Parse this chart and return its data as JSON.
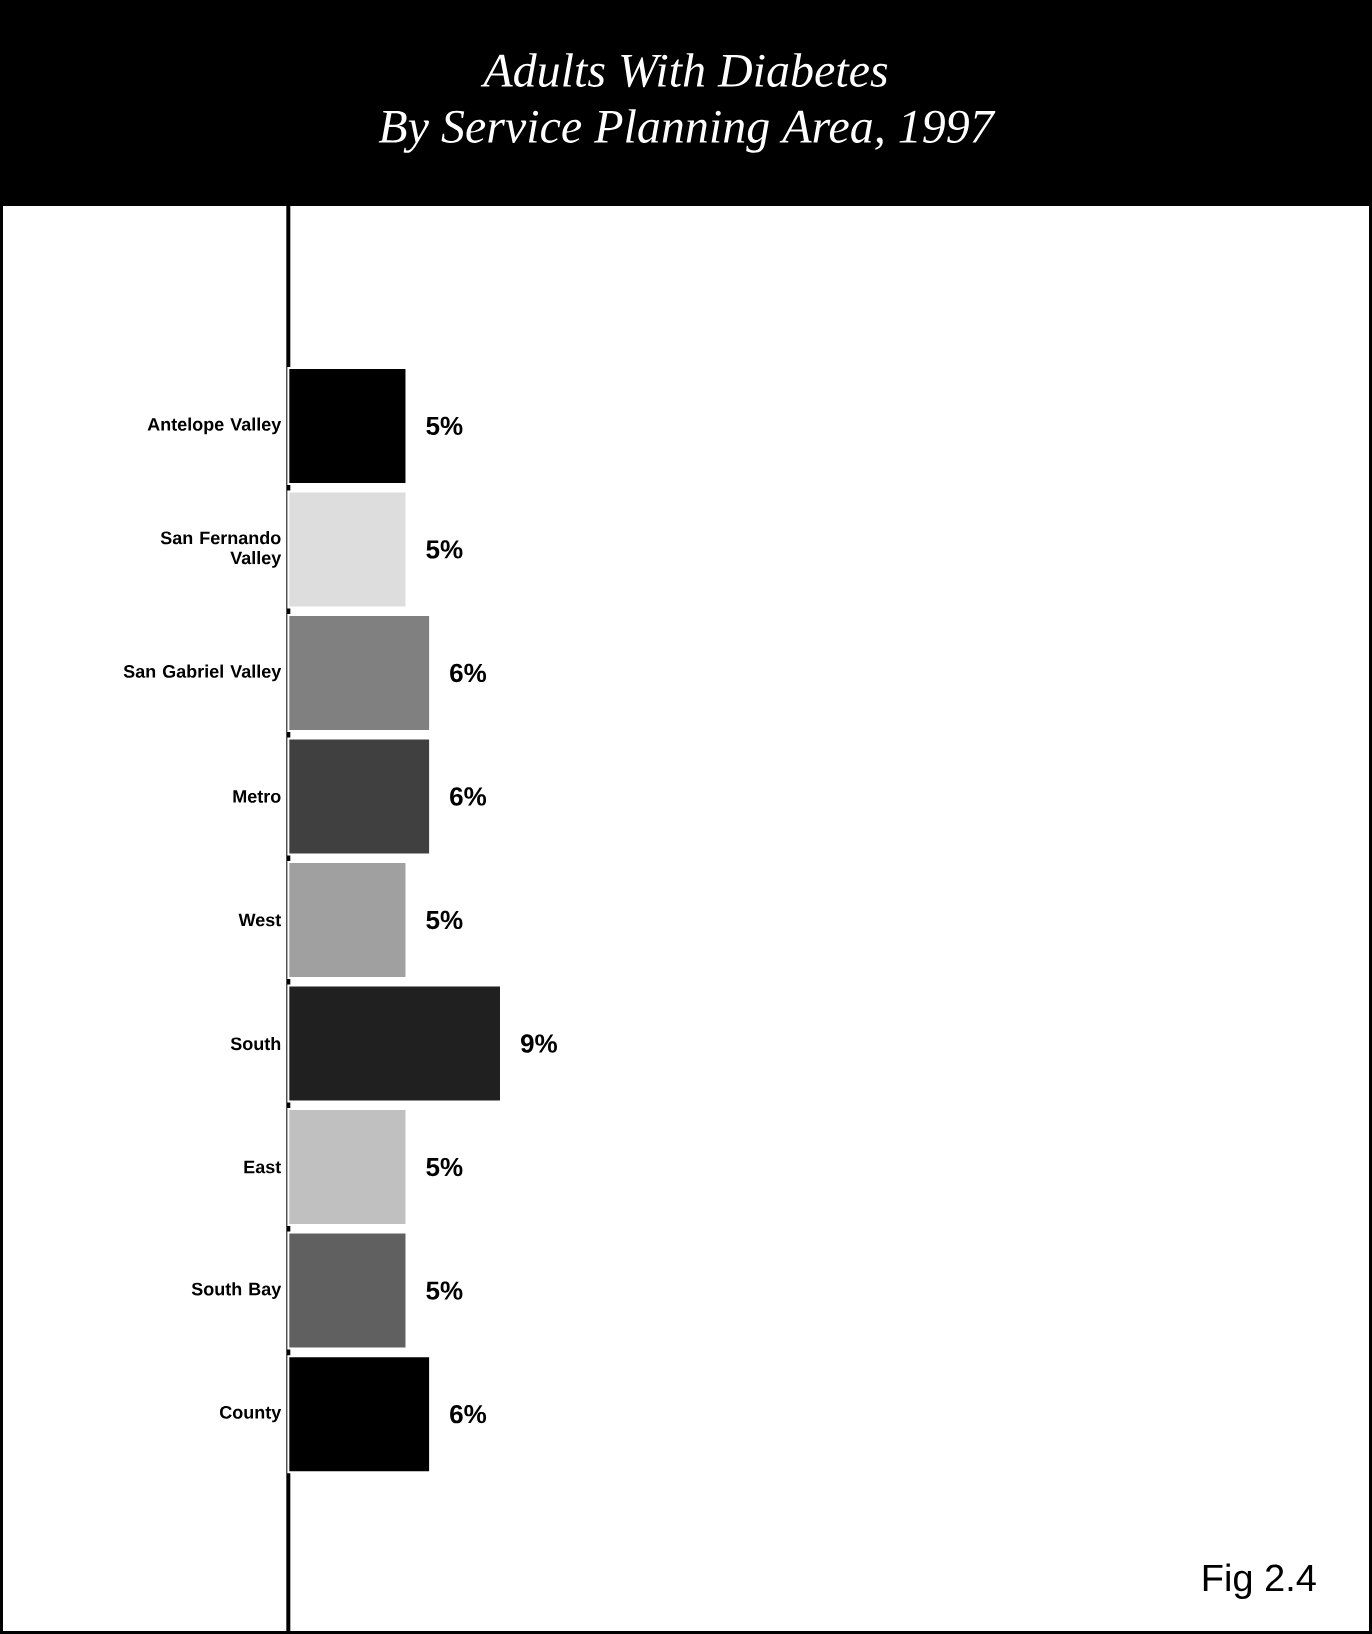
{
  "chart_data": {
    "type": "bar",
    "orientation": "horizontal",
    "title": "Adults With Diabetes\nBy Service Planning Area, 1997",
    "categories": [
      "Antelope Valley",
      "San Fernando Valley",
      "San Gabriel Valley",
      "Metro",
      "West",
      "South",
      "East",
      "South Bay",
      "County"
    ],
    "values": [
      5,
      5,
      6,
      6,
      5,
      9,
      5,
      5,
      6
    ],
    "value_labels": [
      "5%",
      "5%",
      "6%",
      "6%",
      "5%",
      "9%",
      "5%",
      "5%",
      "6%"
    ],
    "colors": [
      "#000000",
      "#dddddd",
      "#808080",
      "#404040",
      "#a0a0a0",
      "#202020",
      "#c0c0c0",
      "#606060",
      "#000000"
    ],
    "annotations": [
      "Fig 2.4"
    ]
  }
}
